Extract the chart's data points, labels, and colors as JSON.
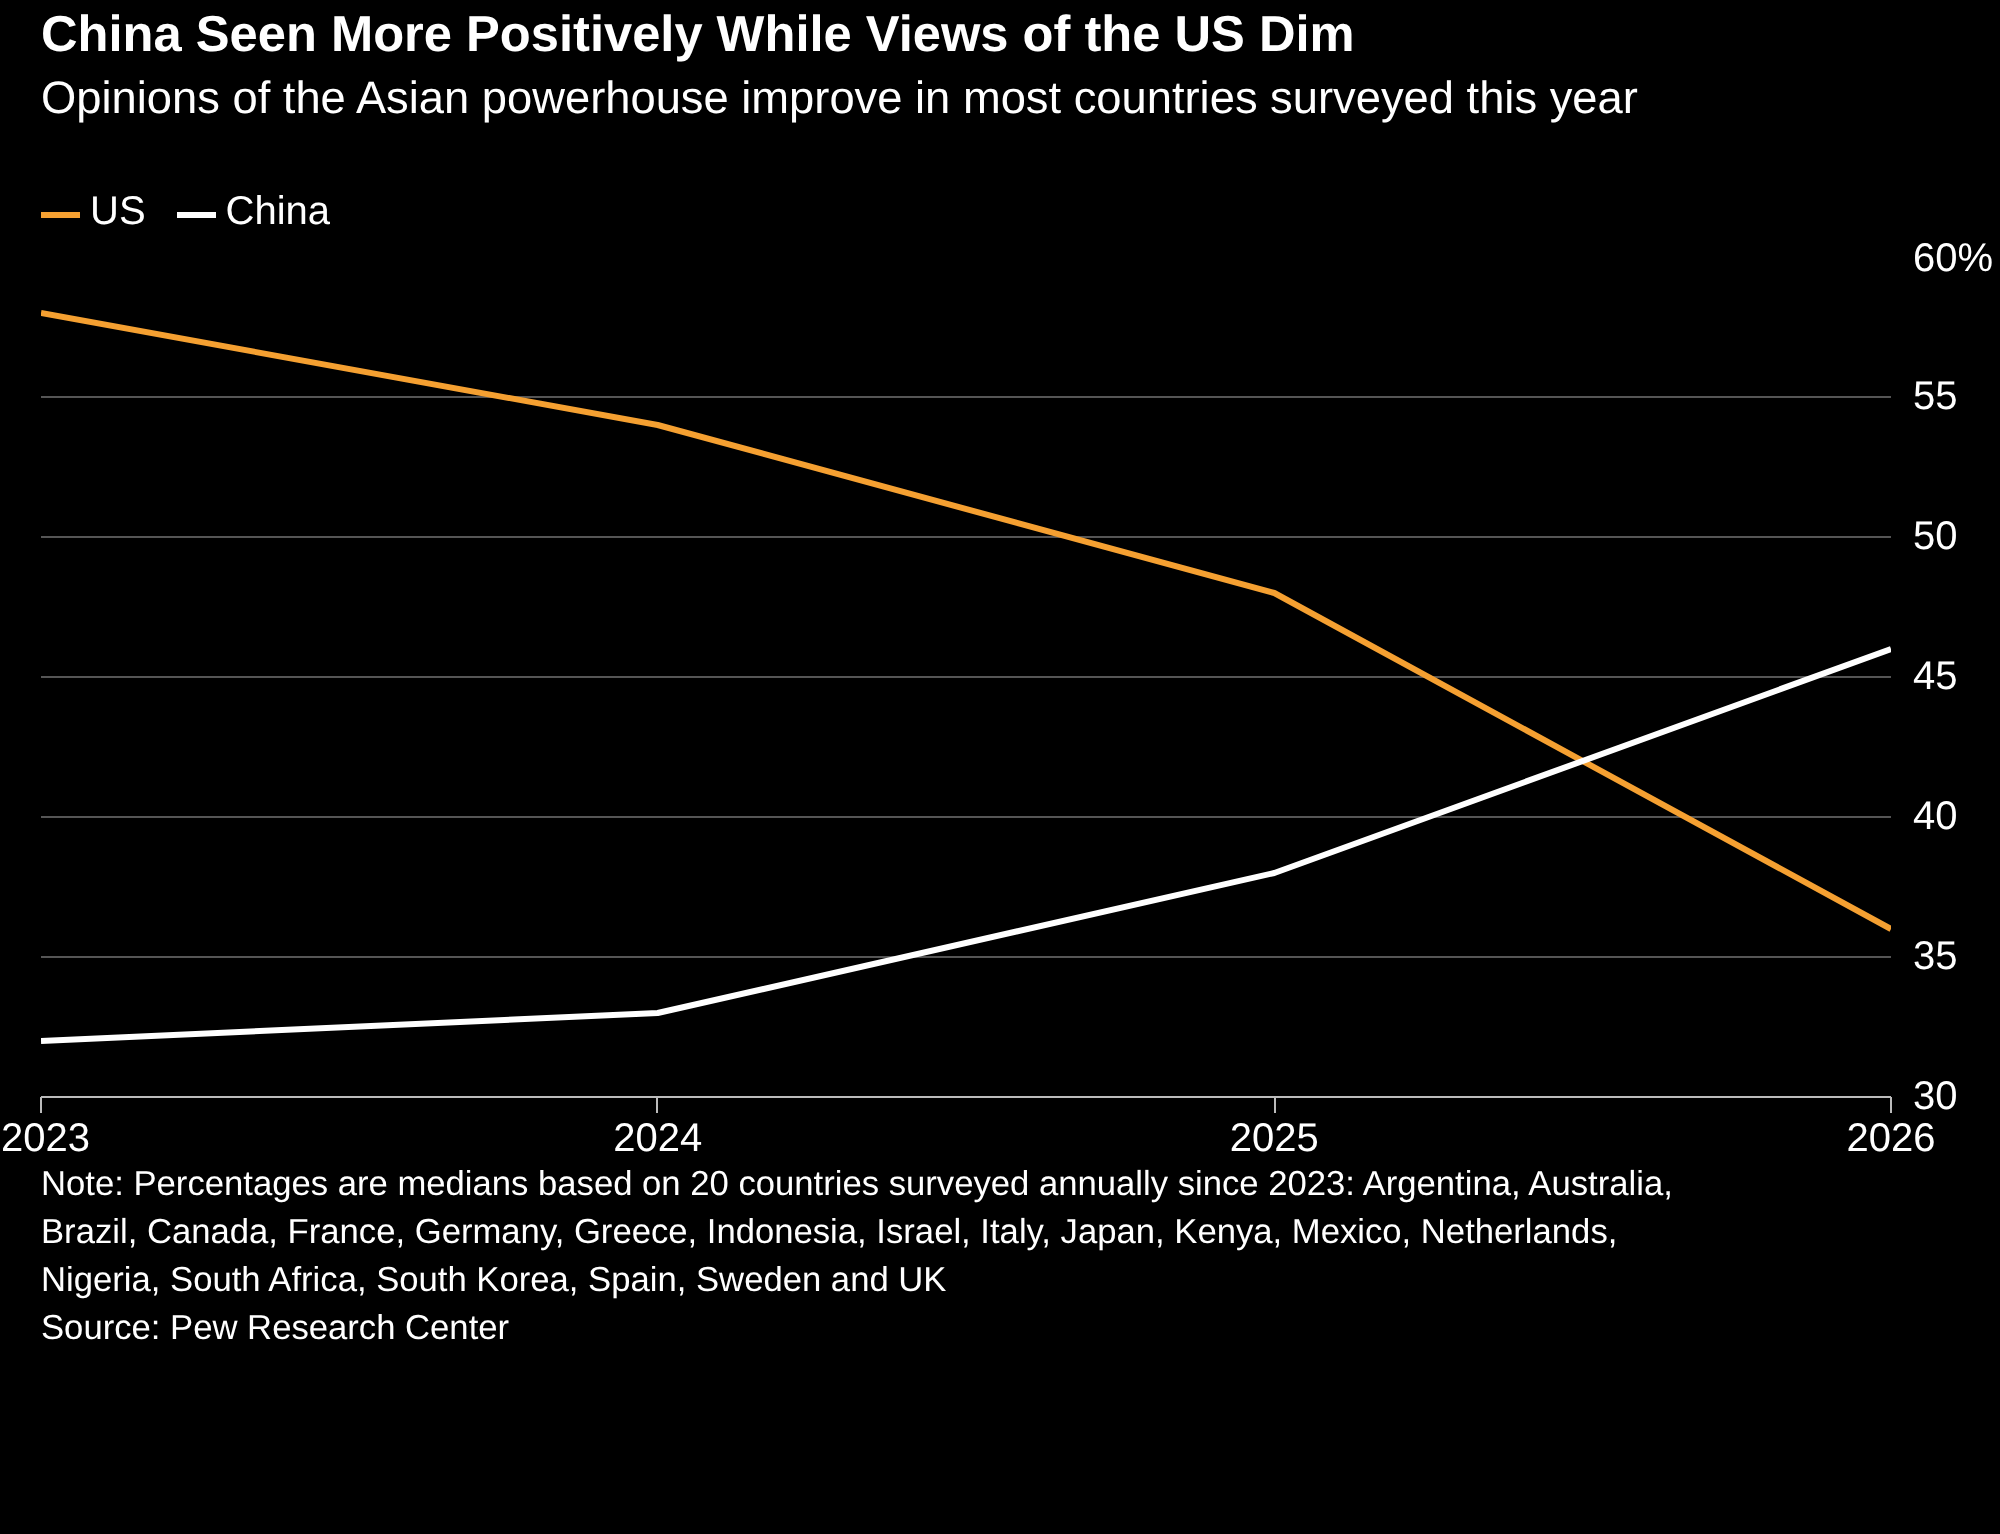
{
  "chart_data": {
    "type": "line",
    "title": "China Seen More Positively While Views of the US Dim",
    "subtitle": "Opinions of the Asian powerhouse improve in most countries surveyed this year",
    "x": [
      2023,
      2024,
      2025,
      2026
    ],
    "series": [
      {
        "name": "US",
        "color": "#f5a031",
        "values": [
          58,
          54,
          48,
          36
        ]
      },
      {
        "name": "China",
        "color": "#ffffff",
        "values": [
          32,
          33,
          38,
          46
        ]
      }
    ],
    "xlim": [
      2023,
      2026
    ],
    "xticks": [
      2023,
      2024,
      2025,
      2026
    ],
    "ylim": [
      30,
      60
    ],
    "yticks": [
      30,
      35,
      40,
      45,
      50,
      55,
      {
        "value": 60,
        "label": "60%"
      }
    ],
    "grid": "y",
    "legend": "top left",
    "marker": "none",
    "line_style": "solid",
    "annotations": [
      "Note: Percentages are medians based on 20 countries surveyed annually since 2023: Argentina, Australia, Brazil, Canada, France, Germany, Greece, Indonesia, Israel, Italy, Japan, Kenya, Mexico, Netherlands, Nigeria, South Africa, South Korea, Spain, Sweden and UK",
      "Source: Pew Research Center"
    ]
  }
}
